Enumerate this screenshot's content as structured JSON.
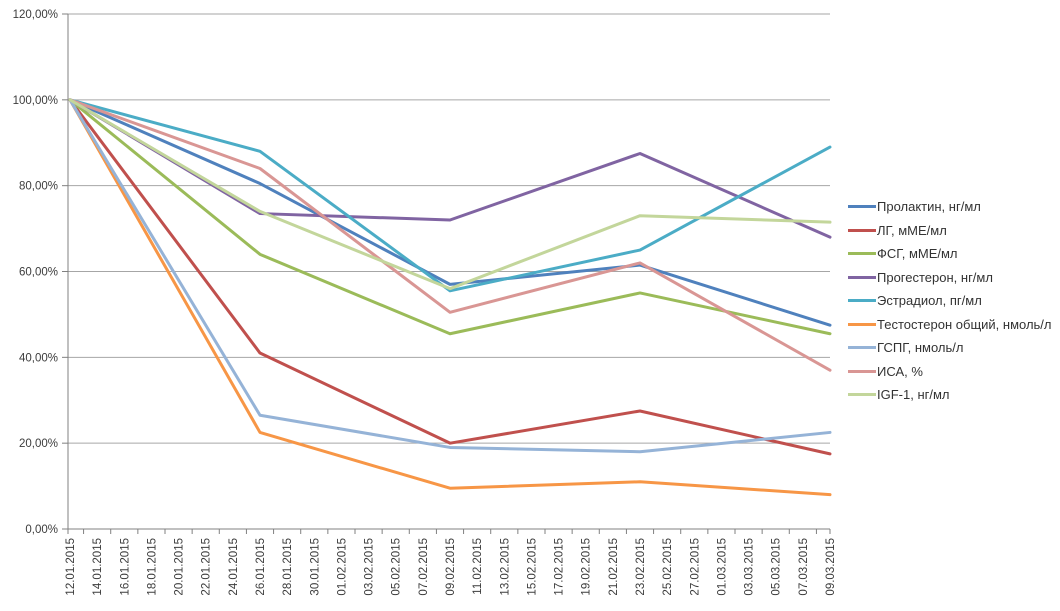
{
  "chart_data": {
    "type": "line",
    "title": "",
    "grid": true,
    "legend_position": "right",
    "ylim": [
      0,
      120
    ],
    "y_tick_step": 20,
    "y_tick_labels": [
      "0,00%",
      "20,00%",
      "40,00%",
      "60,00%",
      "80,00%",
      "100,00%",
      "120,00%"
    ],
    "x_labels": [
      "12.01.2015",
      "14.01.2015",
      "16.01.2015",
      "18.01.2015",
      "20.01.2015",
      "22.01.2015",
      "24.01.2015",
      "26.01.2015",
      "28.01.2015",
      "30.01.2015",
      "01.02.2015",
      "03.02.2015",
      "05.02.2015",
      "07.02.2015",
      "09.02.2015",
      "11.02.2015",
      "13.02.2015",
      "15.02.2015",
      "17.02.2015",
      "19.02.2015",
      "21.02.2015",
      "23.02.2015",
      "25.02.2015",
      "27.02.2015",
      "01.03.2015",
      "03.03.2015",
      "05.03.2015",
      "07.03.2015",
      "09.03.2015"
    ],
    "measurement_dates": [
      "12.01.2015",
      "26.01.2015",
      "09.02.2015",
      "23.02.2015",
      "09.03.2015"
    ],
    "measurement_indices": [
      0,
      7,
      14,
      21,
      28
    ],
    "y_unit": "%",
    "series": [
      {
        "name": "Пролактин, нг/мл",
        "color": "#4F81BD",
        "values": [
          100,
          80.5,
          57,
          61.5,
          47.5
        ]
      },
      {
        "name": "ЛГ, мМЕ/мл",
        "color": "#C0504D",
        "values": [
          100,
          41,
          20,
          27.5,
          17.5
        ]
      },
      {
        "name": "ФСГ, мМЕ/мл",
        "color": "#9BBB59",
        "values": [
          100,
          64,
          45.5,
          55,
          45.5
        ]
      },
      {
        "name": "Прогестерон, нг/мл",
        "color": "#8064A2",
        "values": [
          100,
          73.5,
          72,
          87.5,
          68
        ]
      },
      {
        "name": "Эстрадиол, пг/мл",
        "color": "#4BACC6",
        "values": [
          100,
          88,
          55.5,
          65,
          89
        ]
      },
      {
        "name": "Тестостерон общий, нмоль/л",
        "color": "#F79646",
        "values": [
          100,
          22.5,
          9.5,
          11,
          8
        ]
      },
      {
        "name": "ГСПГ, нмоль/л",
        "color": "#95B3D7",
        "values": [
          100,
          26.5,
          19,
          18,
          22.5
        ]
      },
      {
        "name": "ИСА, %",
        "color": "#D99694",
        "values": [
          100,
          84,
          50.5,
          62,
          37
        ]
      },
      {
        "name": "IGF-1, нг/мл",
        "color": "#C3D69B",
        "values": [
          100,
          74,
          56,
          73,
          71.5
        ]
      }
    ],
    "colors": {
      "background": "#FFFFFF",
      "gridline": "#A6A6A6",
      "axis": "#808080",
      "tick_label": "#3C3C3C"
    }
  }
}
